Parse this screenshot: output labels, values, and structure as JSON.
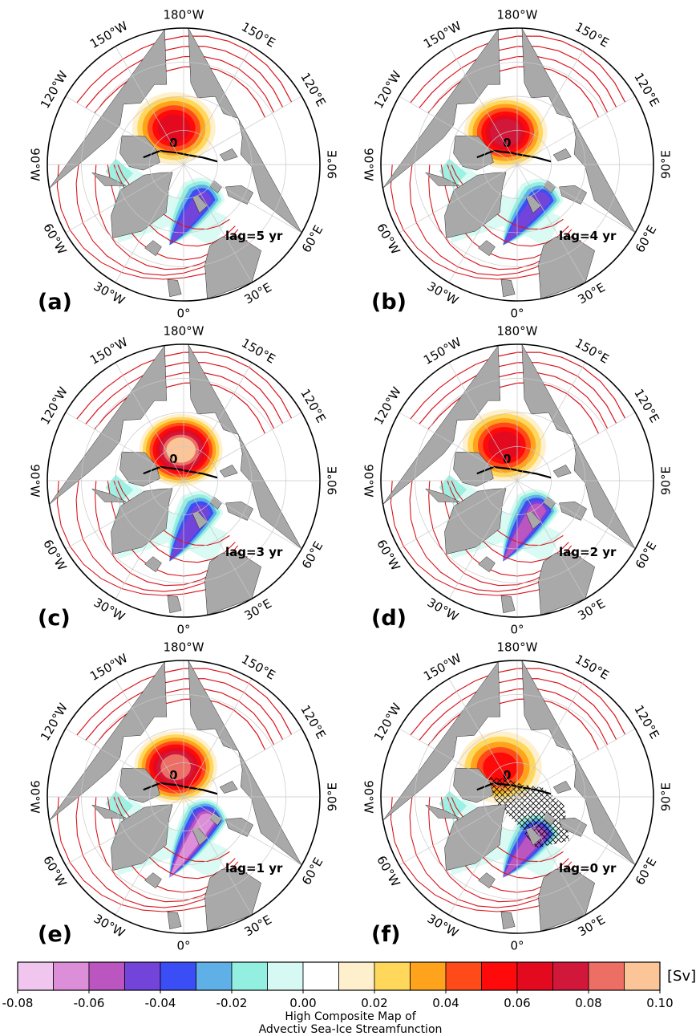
{
  "chart_data": {
    "type": "heatmap",
    "description_units": "Sv",
    "panels": [
      {
        "label": "(a)",
        "lag": "lag=5 yr",
        "pos_center": {
          "lon": -165,
          "colat": 11
        },
        "pos_peak": 0.065,
        "neg_center": {
          "lon": 30,
          "colat": 12
        },
        "neg_peak": -0.05,
        "hatch": false
      },
      {
        "label": "(b)",
        "lag": "lag=4 yr",
        "pos_center": {
          "lon": -160,
          "colat": 10
        },
        "pos_peak": 0.07,
        "neg_center": {
          "lon": 35,
          "colat": 13
        },
        "neg_peak": -0.055,
        "hatch": false
      },
      {
        "label": "(c)",
        "lag": "lag=3 yr",
        "pos_center": {
          "lon": -175,
          "colat": 9
        },
        "pos_peak": 0.095,
        "neg_center": {
          "lon": 30,
          "colat": 11
        },
        "neg_peak": -0.05,
        "hatch": false
      },
      {
        "label": "(d)",
        "lag": "lag=2 yr",
        "pos_center": {
          "lon": -160,
          "colat": 11
        },
        "pos_peak": 0.06,
        "neg_center": {
          "lon": 35,
          "colat": 11
        },
        "neg_peak": -0.06,
        "hatch": false
      },
      {
        "label": "(e)",
        "lag": "lag=1 yr",
        "pos_center": {
          "lon": -165,
          "colat": 9
        },
        "pos_peak": 0.085,
        "neg_center": {
          "lon": 45,
          "colat": 10
        },
        "neg_peak": -0.07,
        "hatch": false
      },
      {
        "label": "(f)",
        "lag": "lag=0 yr",
        "pos_center": {
          "lon": -150,
          "colat": 10
        },
        "pos_peak": 0.05,
        "neg_center": {
          "lon": 30,
          "colat": 13
        },
        "neg_peak": -0.065,
        "hatch": true
      }
    ],
    "longitude_labels": [
      {
        "text": "180°W",
        "lon": 180
      },
      {
        "text": "150°E",
        "lon": 150
      },
      {
        "text": "120°E",
        "lon": 120
      },
      {
        "text": "90°E",
        "lon": 90
      },
      {
        "text": "60°E",
        "lon": 60
      },
      {
        "text": "30°E",
        "lon": 30
      },
      {
        "text": "0°",
        "lon": 0
      },
      {
        "text": "30°W",
        "lon": -30
      },
      {
        "text": "60°W",
        "lon": -60
      },
      {
        "text": "90°W",
        "lon": -90
      },
      {
        "text": "120°W",
        "lon": -120
      },
      {
        "text": "150°W",
        "lon": -150
      }
    ],
    "contour_zero_label": "0",
    "colorbar": {
      "ticks": [
        "-0.08",
        "-0.06",
        "-0.04",
        "-0.02",
        "0.00",
        "0.02",
        "0.04",
        "0.06",
        "0.08",
        "0.10"
      ],
      "range": [
        -0.08,
        0.1
      ],
      "step": 0.01,
      "colors": [
        "#f0c5ee",
        "#dd8ed8",
        "#bb55c0",
        "#7344da",
        "#3b4ef5",
        "#5fb0e6",
        "#93f0e0",
        "#d6faf3",
        "#ffffff",
        "#fff0cd",
        "#ffd75a",
        "#ffa31d",
        "#ff4a1a",
        "#ff0a0a",
        "#e3091f",
        "#d2183a",
        "#ed6e64",
        "#fcc598"
      ],
      "unit": "[Sv]",
      "title_line1": "High Composite Map of",
      "title_line2": "Advectiv Sea-Ice Streamfunction"
    },
    "colors": {
      "land": "#a9a9a9",
      "ocean": "#ffffff",
      "contour_red": "#d8141c",
      "contour_black": "#000000",
      "grid": "#c8c8c8"
    }
  }
}
